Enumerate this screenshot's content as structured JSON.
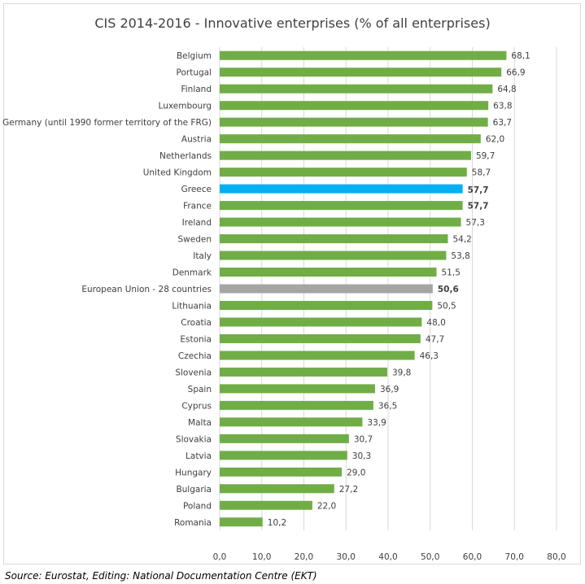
{
  "chart_data": {
    "type": "bar",
    "orientation": "horizontal",
    "title": "CIS 2014-2016 - Innovative enterprises (% of all enterprises)",
    "categories": [
      "Belgium",
      "Portugal",
      "Finland",
      "Luxembourg",
      "Germany (until 1990 former territory of the FRG)",
      "Austria",
      "Netherlands",
      "United Kingdom",
      "Greece",
      "France",
      "Ireland",
      "Sweden",
      "Italy",
      "Denmark",
      "European Union - 28 countries",
      "Lithuania",
      "Croatia",
      "Estonia",
      "Czechia",
      "Slovenia",
      "Spain",
      "Cyprus",
      "Malta",
      "Slovakia",
      "Latvia",
      "Hungary",
      "Bulgaria",
      "Poland",
      "Romania"
    ],
    "values": [
      68.1,
      66.9,
      64.8,
      63.8,
      63.7,
      62.0,
      59.7,
      58.7,
      57.7,
      57.7,
      57.3,
      54.2,
      53.8,
      51.5,
      50.6,
      50.5,
      48.0,
      47.7,
      46.3,
      39.8,
      36.9,
      36.5,
      33.9,
      30.7,
      30.3,
      29.0,
      27.2,
      22.0,
      10.2
    ],
    "value_labels": [
      "68,1",
      "66,9",
      "64,8",
      "63,8",
      "63,7",
      "62,0",
      "59,7",
      "58,7",
      "57,7",
      "57,7",
      "57,3",
      "54,2",
      "53,8",
      "51,5",
      "50,6",
      "50,5",
      "48,0",
      "47,7",
      "46,3",
      "39,8",
      "36,9",
      "36,5",
      "33,9",
      "30,7",
      "30,3",
      "29,0",
      "27,2",
      "22,0",
      "10,2"
    ],
    "highlights": {
      "Greece": "#00b0f0",
      "European Union - 28 countries": "#a5a5a5"
    },
    "bold_labels": [
      "Greece",
      "France",
      "European Union - 28 countries"
    ],
    "xlim": [
      0,
      80
    ],
    "xticks": [
      0,
      10,
      20,
      30,
      40,
      50,
      60,
      70,
      80
    ],
    "xtick_labels": [
      "0,0",
      "10,0",
      "20,0",
      "30,0",
      "40,0",
      "50,0",
      "60,0",
      "70,0",
      "80,0"
    ],
    "grid": true,
    "colors": {
      "bar": "#70ad47",
      "grid": "#d9d9d9",
      "text": "#404040"
    }
  },
  "source_note": "Source: Eurostat, Editing: National Documentation Centre (EKT)"
}
